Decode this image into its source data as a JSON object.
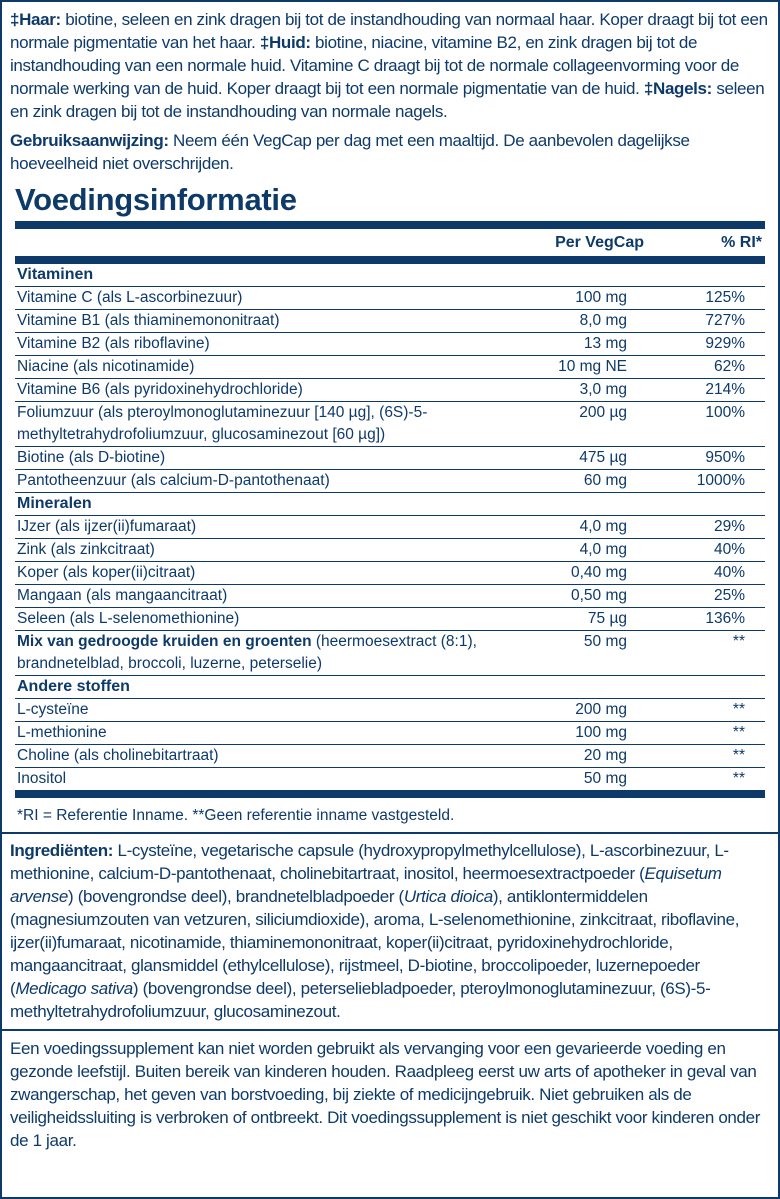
{
  "claims": {
    "haar_label": "‡Haar:",
    "haar_text": " biotine, seleen en zink dragen bij tot de instandhouding van normaal haar. Koper draagt bij tot een normale pigmentatie van het haar. ",
    "huid_label": "‡Huid:",
    "huid_text": " biotine, niacine, vitamine B2, en zink dragen bij tot de instandhouding van een normale huid. Vitamine C draagt bij tot de normale collageenvorming voor de normale werking van de huid. Koper draagt bij tot een normale pigmentatie van de huid. ",
    "nagels_label": "‡Nagels:",
    "nagels_text": " seleen en zink dragen bij tot de instand­houding van normale nagels."
  },
  "usage": {
    "label": "Gebruiksaanwijzing:",
    "text": " Neem één VegCap per dag met een maaltijd. De aanbevolen dagelijkse hoeveelheid niet overschrijden."
  },
  "title": "Voedingsinformatie",
  "table": {
    "col_amount": "Per VegCap",
    "col_ri": "% RI*",
    "sections": [
      {
        "name": "Vitaminen",
        "rows": [
          {
            "name": "Vitamine C (als L-ascorbinezuur)",
            "amount": "100 mg",
            "ri": "125%"
          },
          {
            "name": "Vitamine B1 (als thiaminemononitraat)",
            "amount": "8,0 mg",
            "ri": "727%"
          },
          {
            "name": "Vitamine B2 (als riboflavine)",
            "amount": "13 mg",
            "ri": "929%"
          },
          {
            "name": "Niacine (als nicotinamide)",
            "amount": "10 mg NE",
            "ri": "62%"
          },
          {
            "name": "Vitamine B6 (als pyridoxinehydrochloride)",
            "amount": "3,0 mg",
            "ri": "214%"
          },
          {
            "name": "Foliumzuur (als pteroylmonoglutaminezuur [140 µg], (6S)-5-methyltetrahydrofoliumzuur, glucosaminezout [60 µg])",
            "amount": "200 µg",
            "ri": "100%"
          },
          {
            "name": "Biotine (als D-biotine)",
            "amount": "475 µg",
            "ri": "950%"
          },
          {
            "name": "Pantotheenzuur (als calcium-D-pantothenaat)",
            "amount": "60 mg",
            "ri": "1000%"
          }
        ]
      },
      {
        "name": "Mineralen",
        "rows": [
          {
            "name": "IJzer (als ijzer(ii)fumaraat)",
            "amount": "4,0 mg",
            "ri": "29%"
          },
          {
            "name": "Zink (als zinkcitraat)",
            "amount": "4,0 mg",
            "ri": "40%"
          },
          {
            "name": "Koper (als koper(ii)citraat)",
            "amount": "0,40 mg",
            "ri": "40%"
          },
          {
            "name": "Mangaan (als mangaancitraat)",
            "amount": "0,50 mg",
            "ri": "25%"
          },
          {
            "name": "Seleen (als L-selenomethionine)",
            "amount": "75 µg",
            "ri": "136%"
          }
        ]
      }
    ],
    "mix": {
      "name": "Mix van gedroogde kruiden en groenten",
      "detail": " (heermoes­extract (8:1), brandnetelblad, broccoli, luzerne, peterselie)",
      "amount": "50 mg",
      "ri": "**"
    },
    "other": {
      "name": "Andere stoffen",
      "rows": [
        {
          "name": "L-cysteïne",
          "amount": "200 mg",
          "ri": "**"
        },
        {
          "name": "L-methionine",
          "amount": "100 mg",
          "ri": "**"
        },
        {
          "name": "Choline (als cholinebitartraat)",
          "amount": "20 mg",
          "ri": "**"
        },
        {
          "name": "Inositol",
          "amount": "50 mg",
          "ri": "**"
        }
      ]
    },
    "footnote": "*RI = Referentie Inname. **Geen referentie inname vastgesteld."
  },
  "ingredients": {
    "label": "Ingrediënten:",
    "t1": " L-cysteïne, vegetarische capsule (hydroxypropylmethylcellulose), L-ascor­binezuur, L-methionine, calcium-D-pantothenaat, cholinebitartraat, inositol, heermoes­extractpoeder (",
    "i1": "Equisetum arvense",
    "t2": ") (bovengrondse deel), brandnetelbladpoeder (",
    "i2": "Urtica dioica",
    "t3": "), antiklontermiddelen (magnesiumzouten van vetzuren, siliciumdioxide), aroma, L-selenomethionine, zinkcitraat, riboflavine, ijzer(ii)fumaraat, nicotinamide, thiaminemo­nonitraat, koper(ii)citraat, pyridoxinehydrochloride, mangaancitraat, glansmiddel (ethyl­cellulose), rijstmeel, D-biotine, broccolipoeder, luzernepoeder (",
    "i3": "Medicago sativa",
    "t4": ") (boven­grondse deel), peterseliebladpoeder, pteroylmonoglutaminezuur, (6S)-5-methyltetrahy­drofoliumzuur, glucosaminezout."
  },
  "warning": "Een voedingssupplement kan niet worden gebruikt als vervanging voor een gevarieerde voeding en gezonde leefstijl. Buiten bereik van kinderen houden. Raadpleeg eerst uw arts of apotheker in geval van zwangerschap, het geven van borstvoeding, bij ziekte of medi­cijngebruik. Niet gebruiken als de veiligheidssluiting is verbroken of ontbreekt. Dit voe­dingssupplement is niet geschikt voor kinderen onder de 1 jaar.",
  "colors": {
    "brand": "#0e3a6a"
  }
}
